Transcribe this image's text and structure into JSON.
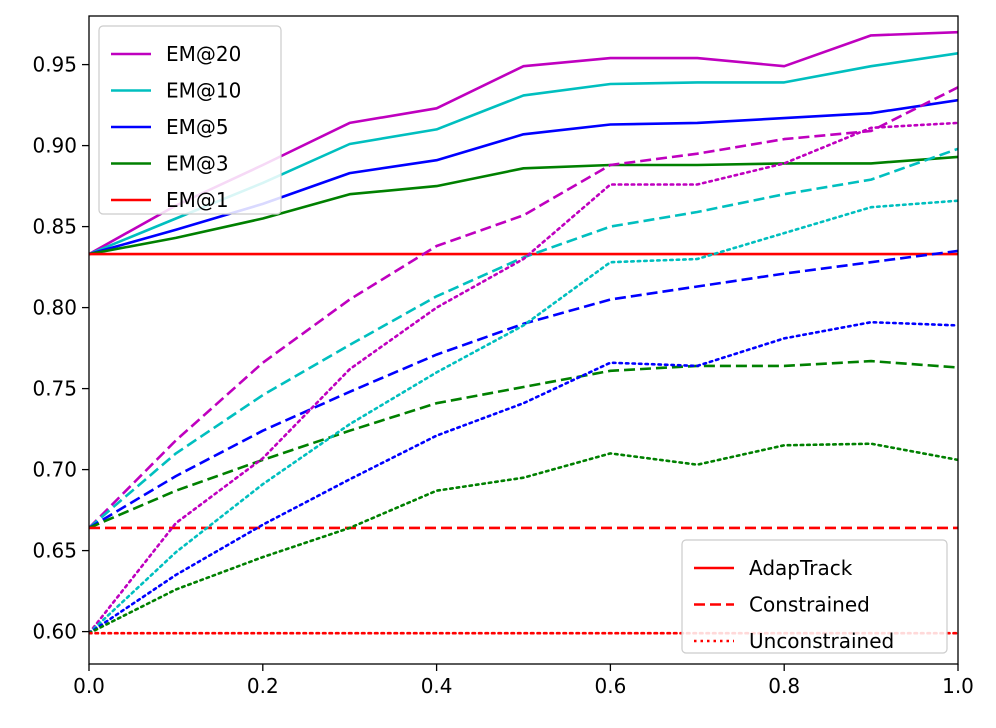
{
  "chart_data": {
    "type": "line",
    "xlim": [
      0.0,
      1.0
    ],
    "ylim": [
      0.58,
      0.98
    ],
    "x_ticks": [
      0.0,
      0.2,
      0.4,
      0.6,
      0.8,
      1.0
    ],
    "x_tick_labels": [
      "0.0",
      "0.2",
      "0.4",
      "0.6",
      "0.8",
      "1.0"
    ],
    "y_ticks": [
      0.6,
      0.65,
      0.7,
      0.75,
      0.8,
      0.85,
      0.9,
      0.95
    ],
    "y_tick_labels": [
      "0.60",
      "0.65",
      "0.70",
      "0.75",
      "0.80",
      "0.85",
      "0.90",
      "0.95"
    ],
    "grid": false,
    "x": [
      0.0,
      0.1,
      0.2,
      0.3,
      0.4,
      0.5,
      0.6,
      0.7,
      0.8,
      0.9,
      1.0
    ],
    "color_legend": {
      "placement": "upper-left",
      "entries": [
        {
          "label": "EM@20",
          "color": "#bf00bf"
        },
        {
          "label": "EM@10",
          "color": "#00bfbf"
        },
        {
          "label": "EM@5",
          "color": "#0000ff"
        },
        {
          "label": "EM@3",
          "color": "#008000"
        },
        {
          "label": "EM@1",
          "color": "#ff0000"
        }
      ]
    },
    "style_legend": {
      "placement": "lower-right",
      "entries": [
        {
          "label": "AdapTrack",
          "dash": "solid",
          "color": "#ff0000"
        },
        {
          "label": "Constrained",
          "dash": "dashed",
          "color": "#ff0000"
        },
        {
          "label": "Unconstrained",
          "dash": "dotted",
          "color": "#ff0000"
        }
      ]
    },
    "series": [
      {
        "color": "#bf00bf",
        "dash": "solid",
        "values": [
          0.833,
          0.863,
          0.888,
          0.914,
          0.923,
          0.949,
          0.954,
          0.954,
          0.949,
          0.968,
          0.97
        ]
      },
      {
        "color": "#00bfbf",
        "dash": "solid",
        "values": [
          0.833,
          0.855,
          0.877,
          0.901,
          0.91,
          0.931,
          0.938,
          0.939,
          0.939,
          0.949,
          0.957
        ]
      },
      {
        "color": "#0000ff",
        "dash": "solid",
        "values": [
          0.833,
          0.848,
          0.864,
          0.883,
          0.891,
          0.907,
          0.913,
          0.914,
          0.917,
          0.92,
          0.928
        ]
      },
      {
        "color": "#008000",
        "dash": "solid",
        "values": [
          0.833,
          0.843,
          0.855,
          0.87,
          0.875,
          0.886,
          0.888,
          0.888,
          0.889,
          0.889,
          0.893
        ]
      },
      {
        "color": "#ff0000",
        "dash": "solid",
        "values": [
          0.833,
          0.833,
          0.833,
          0.833,
          0.833,
          0.833,
          0.833,
          0.833,
          0.833,
          0.833,
          0.833
        ]
      },
      {
        "color": "#bf00bf",
        "dash": "dashed",
        "values": [
          0.664,
          0.718,
          0.766,
          0.805,
          0.838,
          0.857,
          0.888,
          0.895,
          0.904,
          0.909,
          0.936
        ]
      },
      {
        "color": "#00bfbf",
        "dash": "dashed",
        "values": [
          0.664,
          0.71,
          0.746,
          0.777,
          0.807,
          0.831,
          0.85,
          0.859,
          0.87,
          0.879,
          0.898
        ]
      },
      {
        "color": "#0000ff",
        "dash": "dashed",
        "values": [
          0.664,
          0.696,
          0.724,
          0.748,
          0.771,
          0.79,
          0.805,
          0.813,
          0.821,
          0.828,
          0.835
        ]
      },
      {
        "color": "#008000",
        "dash": "dashed",
        "values": [
          0.664,
          0.687,
          0.706,
          0.724,
          0.741,
          0.751,
          0.761,
          0.764,
          0.764,
          0.767,
          0.763
        ]
      },
      {
        "color": "#ff0000",
        "dash": "dashed",
        "values": [
          0.664,
          0.664,
          0.664,
          0.664,
          0.664,
          0.664,
          0.664,
          0.664,
          0.664,
          0.664,
          0.664
        ]
      },
      {
        "color": "#bf00bf",
        "dash": "dotted",
        "values": [
          0.599,
          0.667,
          0.707,
          0.762,
          0.8,
          0.83,
          0.876,
          0.876,
          0.889,
          0.911,
          0.914
        ]
      },
      {
        "color": "#00bfbf",
        "dash": "dotted",
        "values": [
          0.599,
          0.649,
          0.691,
          0.728,
          0.76,
          0.789,
          0.828,
          0.83,
          0.846,
          0.862,
          0.866
        ]
      },
      {
        "color": "#0000ff",
        "dash": "dotted",
        "values": [
          0.599,
          0.635,
          0.666,
          0.694,
          0.721,
          0.741,
          0.766,
          0.764,
          0.781,
          0.791,
          0.789
        ]
      },
      {
        "color": "#008000",
        "dash": "dotted",
        "values": [
          0.599,
          0.626,
          0.646,
          0.664,
          0.687,
          0.695,
          0.71,
          0.703,
          0.715,
          0.716,
          0.706
        ]
      },
      {
        "color": "#ff0000",
        "dash": "dotted",
        "values": [
          0.599,
          0.599,
          0.599,
          0.599,
          0.599,
          0.599,
          0.599,
          0.599,
          0.599,
          0.599,
          0.599
        ]
      }
    ]
  }
}
